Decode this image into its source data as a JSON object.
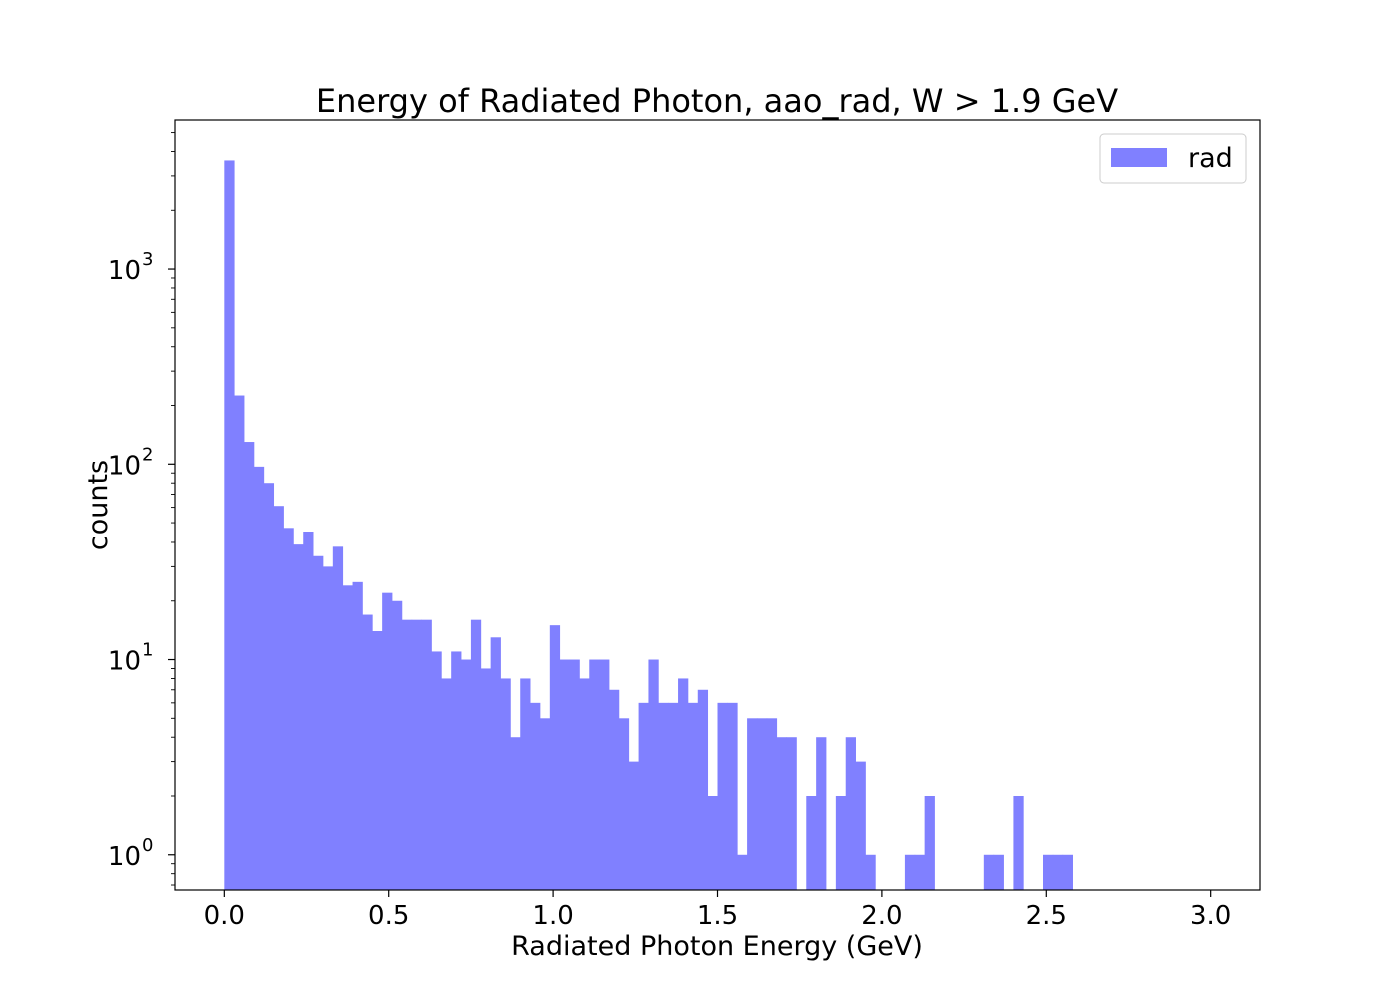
{
  "chart_data": {
    "type": "bar",
    "title": "Energy of Radiated Photon, aao_rad, W > 1.9 GeV",
    "xlabel": "Radiated Photon Energy (GeV)",
    "ylabel": "counts",
    "xlim": [
      -0.15,
      3.15
    ],
    "ylim": [
      0.66,
      5800
    ],
    "yscale": "log",
    "grid": false,
    "legend_position": "top-right",
    "x_ticks": [
      "0.0",
      "0.5",
      "1.0",
      "1.5",
      "2.0",
      "2.5",
      "3.0"
    ],
    "x_tick_values": [
      0,
      0.5,
      1.0,
      1.5,
      2.0,
      2.5,
      3.0
    ],
    "y_ticks": [
      {
        "value": 1,
        "base": "10",
        "exp": "0"
      },
      {
        "value": 10,
        "base": "10",
        "exp": "1"
      },
      {
        "value": 100,
        "base": "10",
        "exp": "2"
      },
      {
        "value": 1000,
        "base": "10",
        "exp": "3"
      }
    ],
    "bin_start": 0.0,
    "bin_width": 0.03,
    "series": [
      {
        "name": "rad",
        "color": "#8080ff",
        "values": [
          3600,
          225,
          130,
          97,
          80,
          61,
          47,
          39,
          45,
          34,
          30,
          38,
          24,
          25,
          17,
          14,
          22,
          20,
          16,
          16,
          16,
          11,
          8,
          11,
          10,
          16,
          9,
          13,
          8,
          4,
          8,
          6,
          5,
          15,
          10,
          10,
          8,
          10,
          10,
          7,
          5,
          3,
          6,
          10,
          6,
          6,
          8,
          6,
          7,
          2,
          6,
          6,
          1,
          5,
          5,
          5,
          4,
          4,
          0,
          2,
          4,
          0,
          2,
          4,
          3,
          1,
          0,
          0,
          0,
          1,
          1,
          2,
          0,
          0,
          0,
          0,
          0,
          1,
          1,
          0,
          2,
          0,
          0,
          1,
          1,
          1,
          0,
          0,
          0,
          0,
          0,
          0,
          0,
          0,
          0,
          0,
          0,
          0,
          0,
          0
        ]
      }
    ]
  }
}
